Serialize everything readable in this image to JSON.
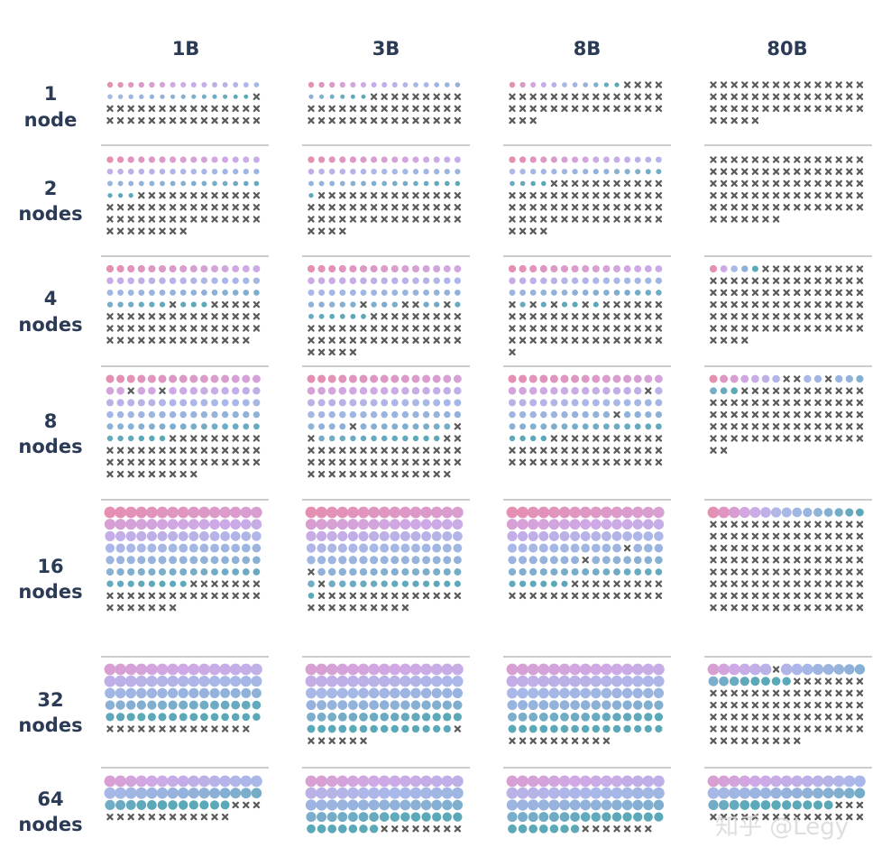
{
  "chart_data": {
    "type": "waffle",
    "columns": [
      "1B",
      "3B",
      "8B",
      "80B"
    ],
    "rows": [
      "1 node",
      "2 nodes",
      "4 nodes",
      "8 nodes",
      "16 nodes",
      "32 nodes",
      "64 nodes"
    ],
    "grid_columns": 15,
    "watermark": "知乎 @Legy",
    "colors": {
      "failed": "#5a5a5a",
      "dot_gradient": [
        "#e58fb3",
        "#cfa9e6",
        "#a9b8e8",
        "#8fb1d8",
        "#5aa8b8"
      ],
      "separator": "#9a9a9a",
      "label": "#2b3a55"
    },
    "cells": [
      [
        {
          "ok": 29,
          "fail": 31,
          "first_fail_row_start": false
        },
        {
          "ok": 21,
          "fail": 39
        },
        {
          "ok": 11,
          "fail": 37
        },
        {
          "ok": 0,
          "fail": 50
        }
      ],
      [
        {
          "ok": 48,
          "fail": 50
        },
        {
          "ok": 46,
          "fail": 48,
          "stray_fail": [
            46
          ]
        },
        {
          "ok": 34,
          "fail": 60
        },
        {
          "ok": 0,
          "fail": 82
        }
      ],
      [
        {
          "ok": 54,
          "fail": 50,
          "stray_fail": [
            51
          ]
        },
        {
          "ok": 62,
          "fail": 48,
          "stray_fail": [
            50,
            54,
            55,
            58
          ]
        },
        {
          "ok": 50,
          "fail": 56,
          "stray_fail": [
            45,
            47,
            49,
            52,
            54,
            55
          ]
        },
        {
          "ok": 5,
          "fail": 89
        }
      ],
      [
        {
          "ok": 79,
          "fail": 50,
          "stray_fail": [
            17,
            20
          ]
        },
        {
          "ok": 85,
          "fail": 49,
          "stray_fail": [
            64,
            74,
            75
          ]
        },
        {
          "ok": 77,
          "fail": 43,
          "stray_fail": [
            28,
            55
          ]
        },
        {
          "ok": 15,
          "fail": 77,
          "stray_fail": [
            7,
            8,
            11
          ]
        }
      ],
      [
        {
          "ok": 98,
          "fail": 29
        },
        {
          "ok": 104,
          "fail": 26,
          "stray_fail": [
            75,
            91
          ]
        },
        {
          "ok": 94,
          "fail": 26,
          "stray_fail": [
            56,
            67
          ]
        },
        {
          "ok": 15,
          "fail": 120
        }
      ],
      [
        {
          "ok": 75,
          "fail": 14
        },
        {
          "ok": 89,
          "fail": 7,
          "stray_fail": [
            90
          ]
        },
        {
          "ok": 90,
          "fail": 10
        },
        {
          "ok": 22,
          "fail": 77,
          "stray_fail": [
            6
          ]
        }
      ],
      [
        {
          "ok": 42,
          "fail": 15
        },
        {
          "ok": 67,
          "fail": 8
        },
        {
          "ok": 67,
          "fail": 7
        },
        {
          "ok": 42,
          "fail": 18
        }
      ]
    ]
  }
}
